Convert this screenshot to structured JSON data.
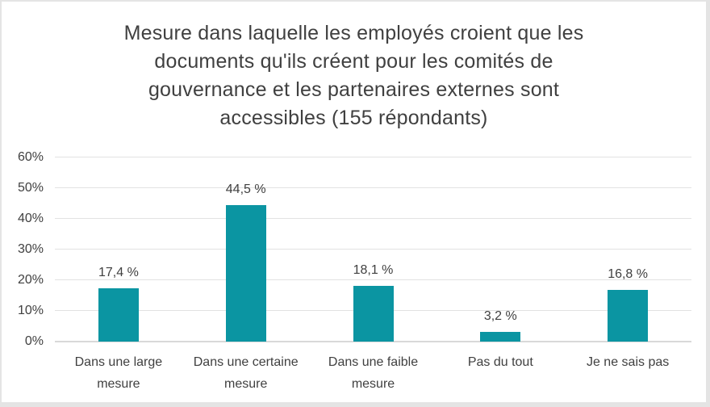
{
  "chart_data": {
    "type": "bar",
    "title": "Mesure dans laquelle les employés croient que les documents qu'ils créent pour les comités de gouvernance et les partenaires externes sont accessibles (155 répondants)",
    "title_lines": [
      "Mesure dans laquelle les employés croient que les",
      "documents qu'ils créent pour les comités de",
      "gouvernance et les partenaires externes sont",
      "accessibles (155 répondants)"
    ],
    "categories": [
      "Dans une large mesure",
      "Dans une certaine mesure",
      "Dans une faible mesure",
      "Pas du tout",
      "Je ne sais pas"
    ],
    "category_lines": [
      [
        "Dans une large",
        "mesure"
      ],
      [
        "Dans une certaine",
        "mesure"
      ],
      [
        "Dans une faible",
        "mesure"
      ],
      [
        "Pas du tout"
      ],
      [
        "Je ne sais pas"
      ]
    ],
    "values": [
      17.4,
      44.5,
      18.1,
      3.2,
      16.8
    ],
    "value_labels": [
      "17,4 %",
      "44,5 %",
      "18,1 %",
      "3,2 %",
      "16,8 %"
    ],
    "y_ticks": [
      "0%",
      "10%",
      "20%",
      "30%",
      "40%",
      "50%",
      "60%"
    ],
    "ylim": [
      0,
      60
    ],
    "xlabel": "",
    "ylabel": "",
    "grid": true,
    "legend": "none",
    "respondents_count": 155,
    "colors": {
      "bar": "#0B95A2",
      "text": "#404040",
      "gridline": "#E2E2E2",
      "axis_line": "#D9D9D9",
      "background": "#FFFFFF",
      "frame_border": "#E4E4E4"
    }
  }
}
